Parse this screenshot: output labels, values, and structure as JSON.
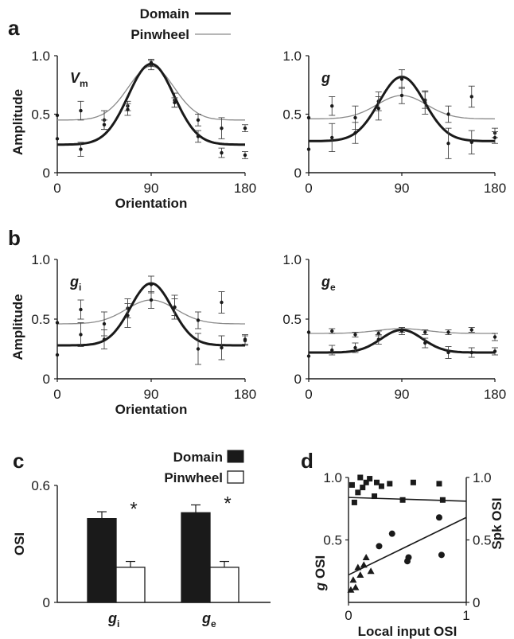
{
  "panel_letters": [
    "a",
    "b",
    "c",
    "d"
  ],
  "colors": {
    "domain": "#1a1a1a",
    "pinwheel": "#8a8a8a",
    "background": "#ffffff"
  },
  "legend_ab": {
    "domain": "Domain",
    "pinwheel": "Pinwheel"
  },
  "legend_c": {
    "domain": "Domain",
    "pinwheel": "Pinwheel"
  },
  "chart_data": [
    {
      "id": "a-left",
      "type": "line",
      "label_main": "V",
      "label_sub": "m",
      "ylabel": "Amplitude",
      "xlabel": "Orientation",
      "xlim": [
        0,
        180
      ],
      "ylim": [
        0,
        1
      ],
      "xticks": [
        "0",
        "90",
        "180"
      ],
      "yticks": [
        "0",
        "0.5",
        "1.0"
      ],
      "series": [
        {
          "name": "Domain",
          "curve": {
            "baseline": 0.24,
            "peak": 0.93,
            "center": 90,
            "sigma": 22
          },
          "points": [
            [
              0,
              0.29,
              0
            ],
            [
              22.5,
              0.2,
              0.06
            ],
            [
              45,
              0.41,
              0.04
            ],
            [
              67.5,
              0.54,
              0.05
            ],
            [
              90,
              0.94,
              0.03
            ],
            [
              112.5,
              0.6,
              0.04
            ],
            [
              135,
              0.31,
              0.05
            ],
            [
              157.5,
              0.17,
              0.04
            ],
            [
              180,
              0.15,
              0.03
            ]
          ]
        },
        {
          "name": "Pinwheel",
          "curve": {
            "baseline": 0.45,
            "peak": 0.91,
            "center": 90,
            "sigma": 22
          },
          "points": [
            [
              0,
              0.49,
              0
            ],
            [
              22.5,
              0.53,
              0.08
            ],
            [
              45,
              0.45,
              0.08
            ],
            [
              67.5,
              0.57,
              0.04
            ],
            [
              90,
              0.92,
              0.04
            ],
            [
              112.5,
              0.62,
              0.06
            ],
            [
              135,
              0.45,
              0.05
            ],
            [
              157.5,
              0.38,
              0.09
            ],
            [
              180,
              0.38,
              0.03
            ]
          ]
        }
      ]
    },
    {
      "id": "a-right",
      "type": "line",
      "label_main": "g",
      "label_sub": "",
      "ylabel": "",
      "xlabel": "",
      "xlim": [
        0,
        180
      ],
      "ylim": [
        0,
        1
      ],
      "xticks": [
        "0",
        "90",
        "180"
      ],
      "yticks": [
        "0",
        "0.5",
        "1.0"
      ],
      "series": [
        {
          "name": "Domain",
          "curve": {
            "baseline": 0.27,
            "peak": 0.82,
            "center": 90,
            "sigma": 22
          },
          "points": [
            [
              0,
              0.2,
              0
            ],
            [
              22.5,
              0.3,
              0.12
            ],
            [
              45,
              0.34,
              0.09
            ],
            [
              67.5,
              0.55,
              0.1
            ],
            [
              90,
              0.8,
              0.08
            ],
            [
              112.5,
              0.6,
              0.1
            ],
            [
              135,
              0.25,
              0.13
            ],
            [
              157.5,
              0.26,
              0.1
            ],
            [
              180,
              0.3,
              0.05
            ]
          ]
        },
        {
          "name": "Pinwheel",
          "curve": {
            "baseline": 0.46,
            "peak": 0.66,
            "center": 90,
            "sigma": 24
          },
          "points": [
            [
              0,
              0.47,
              0
            ],
            [
              22.5,
              0.57,
              0.08
            ],
            [
              45,
              0.47,
              0.1
            ],
            [
              67.5,
              0.61,
              0.08
            ],
            [
              90,
              0.66,
              0.07
            ],
            [
              112.5,
              0.62,
              0.07
            ],
            [
              135,
              0.5,
              0.07
            ],
            [
              157.5,
              0.65,
              0.09
            ],
            [
              180,
              0.34,
              0.04
            ]
          ]
        }
      ]
    },
    {
      "id": "b-left",
      "type": "line",
      "label_main": "g",
      "label_sub": "i",
      "ylabel": "Amplitude",
      "xlabel": "Orientation",
      "xlim": [
        0,
        180
      ],
      "ylim": [
        0,
        1
      ],
      "xticks": [
        "0",
        "90",
        "180"
      ],
      "yticks": [
        "0",
        "0.5",
        "1.0"
      ],
      "series": [
        {
          "name": "Domain",
          "curve": {
            "baseline": 0.28,
            "peak": 0.8,
            "center": 90,
            "sigma": 20
          },
          "points": [
            [
              0,
              0.2,
              0
            ],
            [
              22.5,
              0.37,
              0.1
            ],
            [
              45,
              0.33,
              0.08
            ],
            [
              67.5,
              0.53,
              0.1
            ],
            [
              90,
              0.79,
              0.07
            ],
            [
              112.5,
              0.6,
              0.1
            ],
            [
              135,
              0.25,
              0.13
            ],
            [
              157.5,
              0.26,
              0.1
            ],
            [
              180,
              0.33,
              0.04
            ]
          ]
        },
        {
          "name": "Pinwheel",
          "curve": {
            "baseline": 0.46,
            "peak": 0.66,
            "center": 90,
            "sigma": 24
          },
          "points": [
            [
              0,
              0.47,
              0
            ],
            [
              22.5,
              0.58,
              0.08
            ],
            [
              45,
              0.46,
              0.1
            ],
            [
              67.5,
              0.59,
              0.08
            ],
            [
              90,
              0.66,
              0.07
            ],
            [
              112.5,
              0.6,
              0.07
            ],
            [
              135,
              0.49,
              0.07
            ],
            [
              157.5,
              0.64,
              0.09
            ],
            [
              180,
              0.32,
              0.04
            ]
          ]
        }
      ]
    },
    {
      "id": "b-right",
      "type": "line",
      "label_main": "g",
      "label_sub": "e",
      "ylabel": "",
      "xlabel": "",
      "xlim": [
        0,
        180
      ],
      "ylim": [
        0,
        1
      ],
      "xticks": [
        "0",
        "90",
        "180"
      ],
      "yticks": [
        "0",
        "0.5",
        "1.0"
      ],
      "series": [
        {
          "name": "Domain",
          "curve": {
            "baseline": 0.22,
            "peak": 0.41,
            "center": 90,
            "sigma": 20
          },
          "points": [
            [
              0,
              0.19,
              0
            ],
            [
              22.5,
              0.24,
              0.04
            ],
            [
              45,
              0.26,
              0.04
            ],
            [
              67.5,
              0.33,
              0.04
            ],
            [
              90,
              0.4,
              0.03
            ],
            [
              112.5,
              0.3,
              0.04
            ],
            [
              135,
              0.22,
              0.05
            ],
            [
              157.5,
              0.22,
              0.04
            ],
            [
              180,
              0.23,
              0.03
            ]
          ]
        },
        {
          "name": "Pinwheel",
          "curve": {
            "baseline": 0.38,
            "peak": 0.42,
            "center": 90,
            "sigma": 24
          },
          "points": [
            [
              0,
              0.39,
              0
            ],
            [
              22.5,
              0.4,
              0.02
            ],
            [
              45,
              0.37,
              0.02
            ],
            [
              67.5,
              0.38,
              0.02
            ],
            [
              90,
              0.41,
              0.02
            ],
            [
              112.5,
              0.39,
              0.02
            ],
            [
              135,
              0.39,
              0.02
            ],
            [
              157.5,
              0.41,
              0.02
            ],
            [
              180,
              0.35,
              0.03
            ]
          ]
        }
      ]
    },
    {
      "id": "c",
      "type": "bar",
      "ylabel": "OSI",
      "xlabel": "",
      "ylim": [
        0,
        0.6
      ],
      "yticks": [
        "0",
        "0.6"
      ],
      "category_labels": [
        {
          "main": "g",
          "sub": "i"
        },
        {
          "main": "g",
          "sub": "e"
        }
      ],
      "significance": [
        "*",
        "*"
      ],
      "series": [
        {
          "name": "Domain",
          "values": [
            0.43,
            0.46
          ],
          "errors": [
            0.035,
            0.04
          ]
        },
        {
          "name": "Pinwheel",
          "values": [
            0.18,
            0.18
          ],
          "errors": [
            0.03,
            0.03
          ]
        }
      ]
    },
    {
      "id": "d",
      "type": "scatter",
      "xlabel": "Local input OSI",
      "ylabel_left_main": "g",
      "ylabel_left_rest": "OSI",
      "ylabel_right": "Spk OSI",
      "xlim": [
        0,
        1
      ],
      "ylim": [
        0,
        1
      ],
      "xticks": [
        "0",
        "1"
      ],
      "yticks_left": [
        "0.5",
        "1.0"
      ],
      "yticks_right": [
        "0",
        "0.5",
        "1.0"
      ],
      "series": [
        {
          "marker": "square",
          "points": [
            [
              0.03,
              0.94
            ],
            [
              0.05,
              0.8
            ],
            [
              0.08,
              0.88
            ],
            [
              0.1,
              1.0
            ],
            [
              0.12,
              0.92
            ],
            [
              0.15,
              0.96
            ],
            [
              0.18,
              0.99
            ],
            [
              0.22,
              0.85
            ],
            [
              0.24,
              0.96
            ],
            [
              0.28,
              0.93
            ],
            [
              0.35,
              0.95
            ],
            [
              0.46,
              0.82
            ],
            [
              0.55,
              0.96
            ],
            [
              0.77,
              0.95
            ],
            [
              0.8,
              0.82
            ]
          ],
          "fit": [
            [
              0,
              0.84
            ],
            [
              1,
              0.81
            ]
          ]
        },
        {
          "marker": "circle",
          "points": [
            [
              0.26,
              0.45
            ],
            [
              0.37,
              0.55
            ],
            [
              0.5,
              0.33
            ],
            [
              0.51,
              0.36
            ],
            [
              0.77,
              0.68
            ],
            [
              0.79,
              0.38
            ]
          ],
          "fit": [
            [
              0,
              0.22
            ],
            [
              1,
              0.68
            ]
          ]
        },
        {
          "marker": "triangle",
          "points": [
            [
              0.02,
              0.1
            ],
            [
              0.04,
              0.18
            ],
            [
              0.06,
              0.12
            ],
            [
              0.08,
              0.28
            ],
            [
              0.1,
              0.22
            ],
            [
              0.13,
              0.3
            ],
            [
              0.15,
              0.36
            ],
            [
              0.19,
              0.25
            ]
          ]
        }
      ]
    }
  ]
}
